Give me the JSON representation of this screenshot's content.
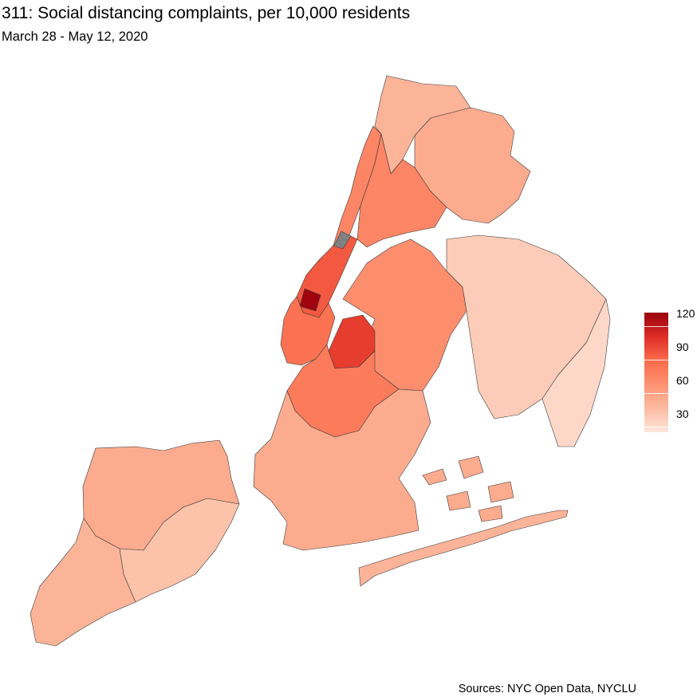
{
  "title": "311: Social distancing complaints, per 10,000 residents",
  "subtitle": "March 28 - May 12, 2020",
  "caption": "Sources: NYC Open Data, NYCLU",
  "legend": {
    "min": 15,
    "max": 122,
    "ticks": [
      {
        "value": 30,
        "label": "30"
      },
      {
        "value": 60,
        "label": "60"
      },
      {
        "value": 90,
        "label": "90"
      },
      {
        "value": 120,
        "label": "120"
      }
    ],
    "colors": [
      "#fee6dc",
      "#fcbba1",
      "#fc9272",
      "#fb6a4a",
      "#de2d26",
      "#99000d"
    ]
  },
  "map": {
    "no_data_color": "#808080",
    "regions": [
      {
        "name": "staten-island-north",
        "value": 45
      },
      {
        "name": "staten-island-south",
        "value": 40
      },
      {
        "name": "staten-island-east",
        "value": 33
      },
      {
        "name": "manhattan-upper",
        "value": 65
      },
      {
        "name": "manhattan-central-park",
        "value": null
      },
      {
        "name": "manhattan-west-midtown",
        "value": 85
      },
      {
        "name": "manhattan-midtown-hotspot",
        "value": 120
      },
      {
        "name": "manhattan-lower",
        "value": 75
      },
      {
        "name": "bronx-west",
        "value": 40
      },
      {
        "name": "bronx-east",
        "value": 45
      },
      {
        "name": "bronx-south",
        "value": 65
      },
      {
        "name": "queens-west",
        "value": 60
      },
      {
        "name": "queens-east",
        "value": 28
      },
      {
        "name": "queens-southeast",
        "value": 22
      },
      {
        "name": "brooklyn-north",
        "value": 95
      },
      {
        "name": "brooklyn-central",
        "value": 70
      },
      {
        "name": "brooklyn-south",
        "value": 45
      },
      {
        "name": "rockaway-peninsula",
        "value": 40
      },
      {
        "name": "jamaica-bay-islands",
        "value": 45
      }
    ]
  }
}
